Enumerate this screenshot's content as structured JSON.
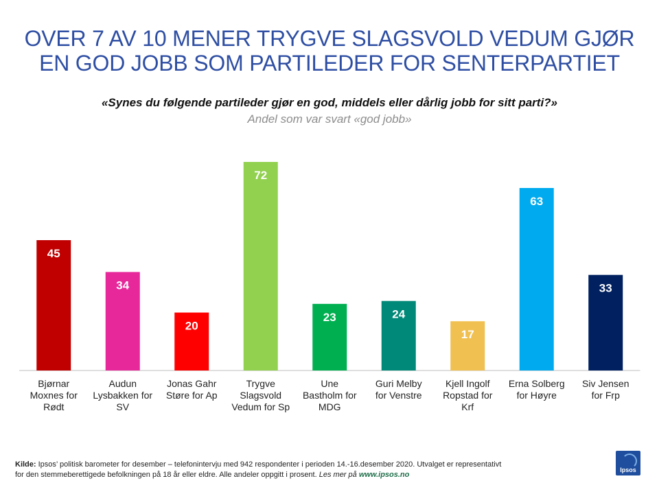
{
  "title_lines": [
    "OVER 7 AV 10 MENER TRYGVE SLAGSVOLD VEDUM GJØR",
    "EN GOD JOBB SOM PARTILEDER FOR SENTERPARTIET"
  ],
  "question": "«Synes du følgende partileder gjør en god, middels eller dårlig jobb for sitt parti?»",
  "subtitle": "Andel som var svart «god jobb»",
  "chart_data": {
    "type": "bar",
    "title": "OVER 7 AV 10 MENER TRYGVE SLAGSVOLD VEDUM GJØR EN GOD JOBB SOM PARTILEDER FOR SENTERPARTIET",
    "xlabel": "",
    "ylabel": "",
    "ylim": [
      0,
      75
    ],
    "grid": false,
    "legend": "none",
    "categories": [
      [
        "Bjørnar",
        "Moxnes for",
        "Rødt"
      ],
      [
        "Audun",
        "Lysbakken for",
        "SV"
      ],
      [
        "Jonas Gahr",
        "Støre for Ap"
      ],
      [
        "Trygve",
        "Slagsvold",
        "Vedum for Sp"
      ],
      [
        "Une",
        "Bastholm for",
        "MDG"
      ],
      [
        "Guri Melby",
        "for Venstre"
      ],
      [
        "Kjell Ingolf",
        "Ropstad for",
        "Krf"
      ],
      [
        "Erna Solberg",
        "for Høyre"
      ],
      [
        "Siv Jensen",
        "for Frp"
      ]
    ],
    "values": [
      45,
      34,
      20,
      72,
      23,
      24,
      17,
      63,
      33
    ],
    "colors": [
      "#c00000",
      "#e6289b",
      "#ff0000",
      "#92d050",
      "#00b050",
      "#008878",
      "#f0c050",
      "#00aaee",
      "#002060"
    ],
    "axis_color": "#bfbfbf"
  },
  "source": {
    "label": "Kilde:",
    "text_line1": " Ipsos’ politisk barometer for desember – telefonintervju  med 942 respondenter i perioden 14.-16.desember 2020. Utvalget er representativt",
    "text_line2": "for den stemmeberettigede befolkningen  på 18 år eller eldre. Alle andeler oppgitt i prosent. ",
    "more": "Les mer på ",
    "link": "www.ipsos.no"
  },
  "logo": {
    "text": "Ipsos",
    "color": "#1f4e9e"
  }
}
